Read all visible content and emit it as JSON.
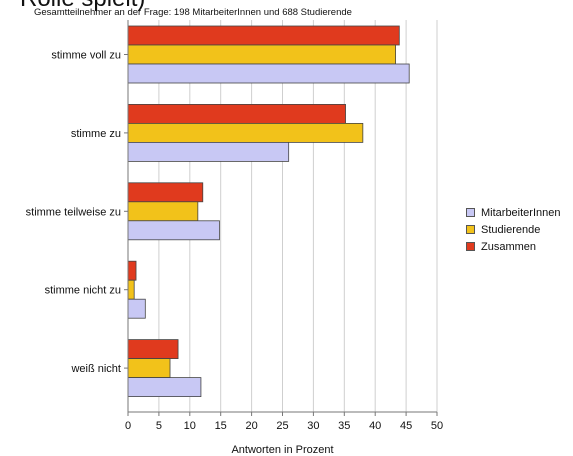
{
  "chart_data": {
    "type": "bar",
    "orientation": "horizontal",
    "title": "Rolle spielt)",
    "subtitle": "Gesamtteilnehmer an der Frage: 198 MitarbeiterInnen und 688 Studierende",
    "xlabel": "Antworten in Prozent",
    "ylabel": "",
    "xlim": [
      0,
      50
    ],
    "xticks": [
      0,
      5,
      10,
      15,
      20,
      25,
      30,
      35,
      40,
      45,
      50
    ],
    "grid": "vertical",
    "legend_position": "right",
    "categories": [
      "stimme voll zu",
      "stimme zu",
      "stimme teilweise zu",
      "stimme nicht zu",
      "weiß nicht"
    ],
    "series": [
      {
        "name": "Zusammen",
        "color": "#e03a1e",
        "values": [
          43.9,
          35.2,
          12.1,
          1.3,
          8.1
        ]
      },
      {
        "name": "Studierende",
        "color": "#f2c21a",
        "values": [
          43.3,
          38.0,
          11.3,
          1.0,
          6.8
        ]
      },
      {
        "name": "MitarbeiterInnen",
        "color": "#c8c8f4",
        "values": [
          45.5,
          26.0,
          14.8,
          2.8,
          11.8
        ]
      }
    ],
    "legend_order": [
      "MitarbeiterInnen",
      "Studierende",
      "Zusammen"
    ]
  }
}
